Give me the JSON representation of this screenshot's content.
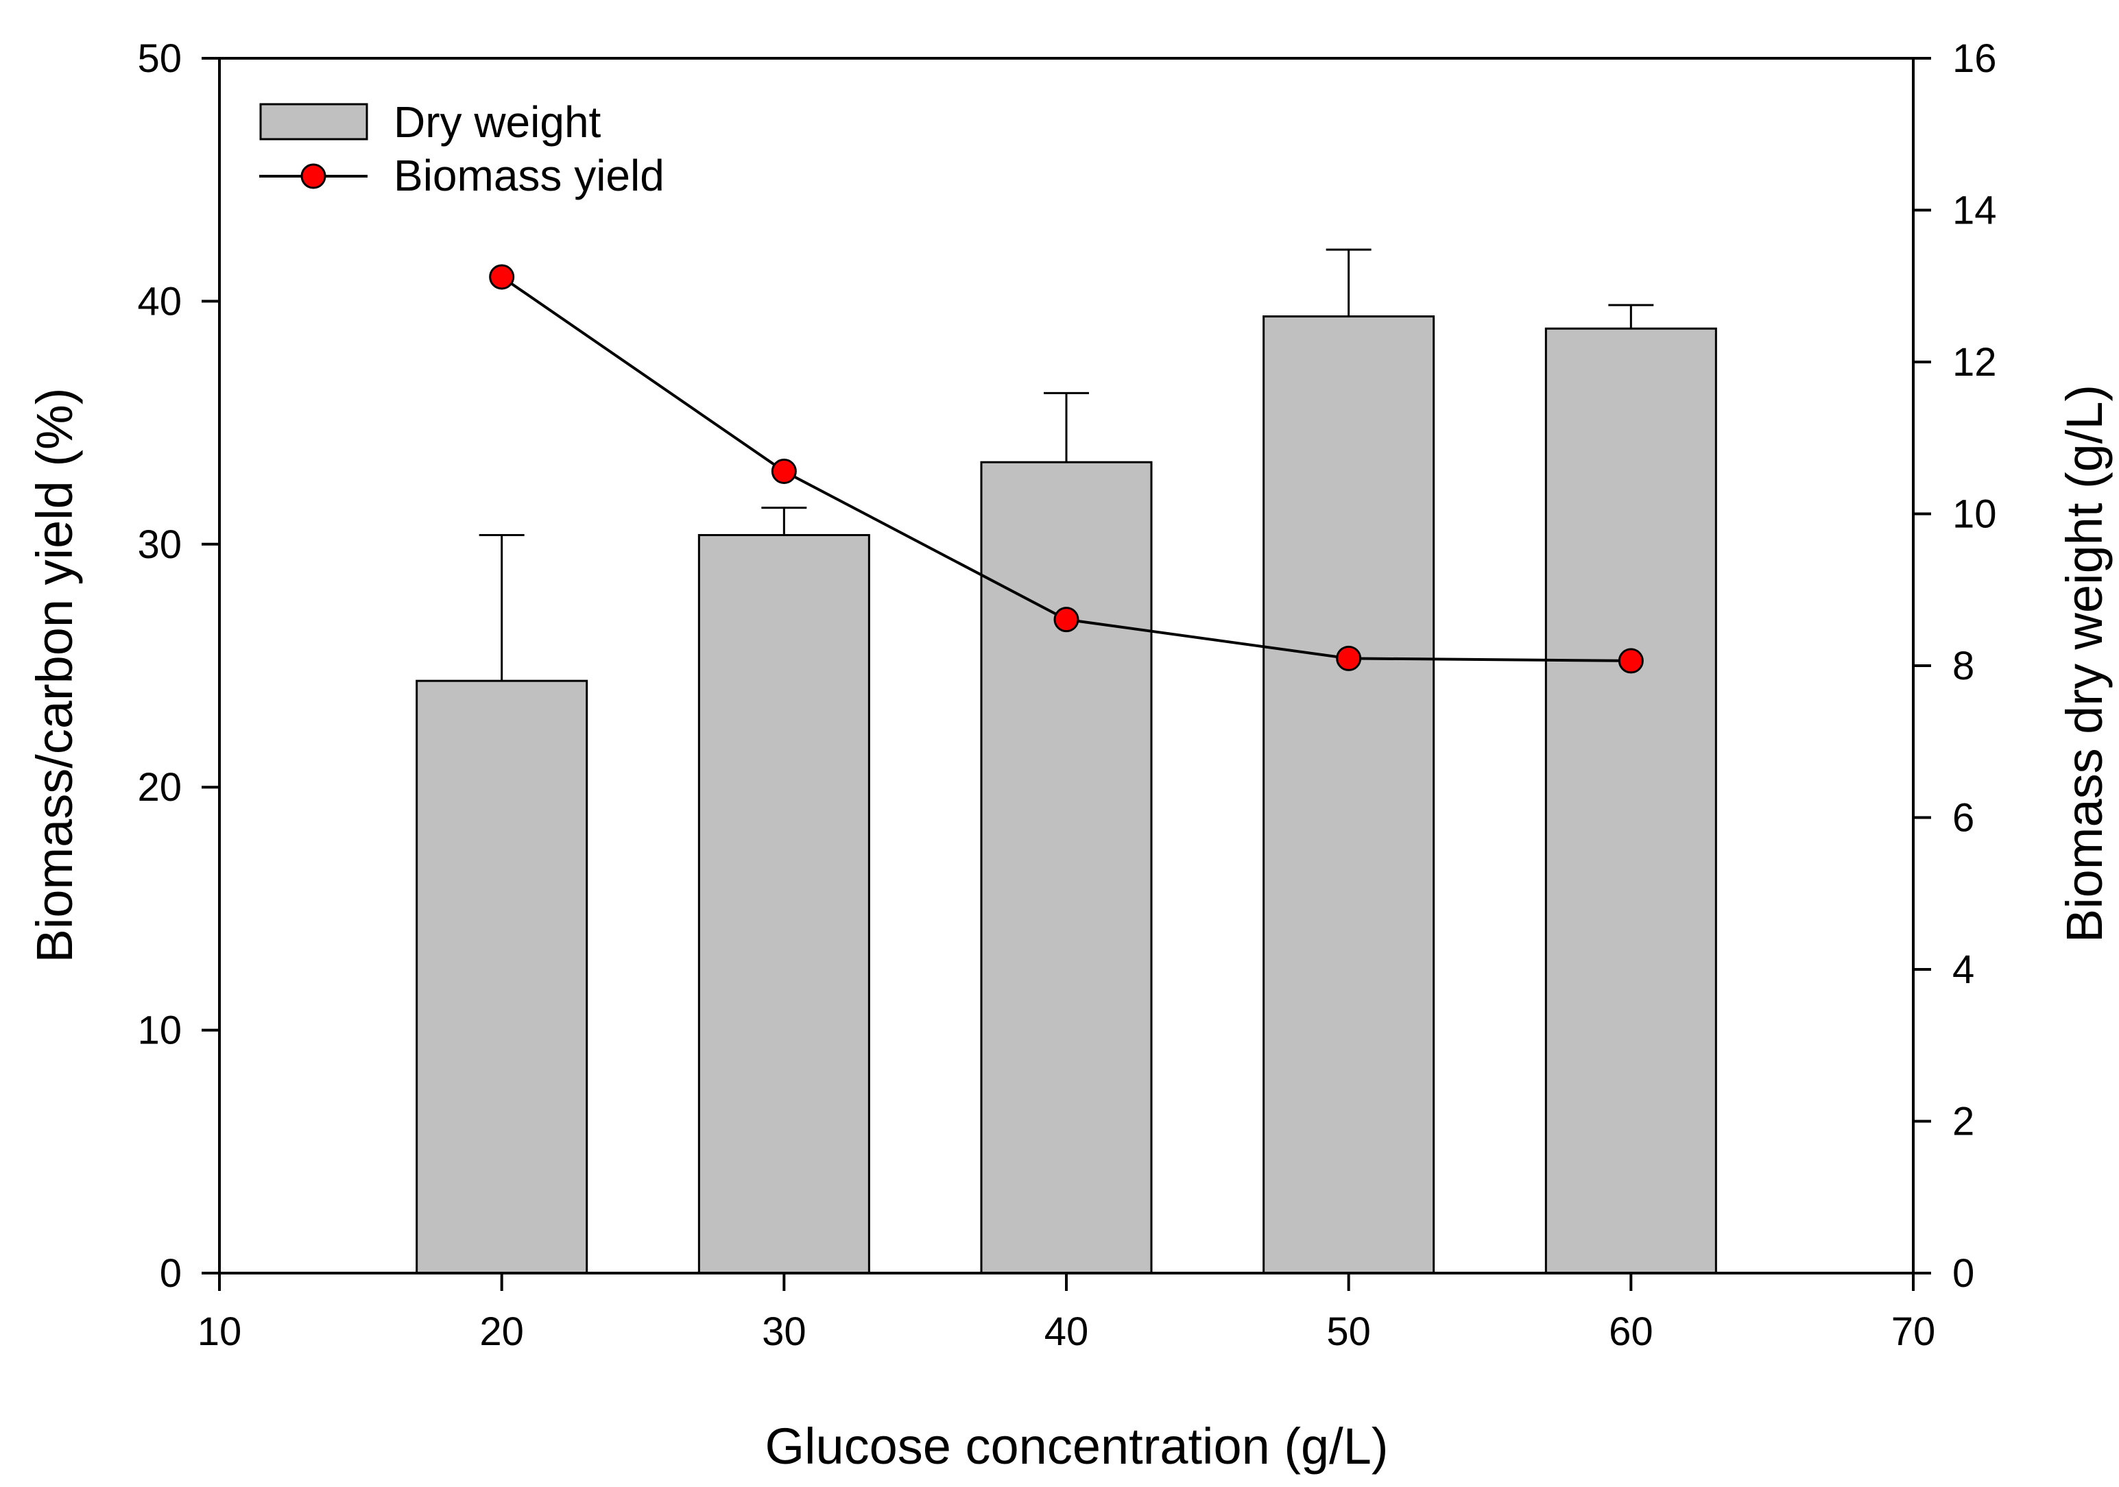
{
  "chart_data": {
    "type": "bar",
    "title": "",
    "xlabel": "Glucose concentration (g/L)",
    "ylabel_left": "Biomass/carbon yield (%)",
    "ylabel_right": "Biomass dry weight (g/L)",
    "xlim": [
      10,
      70
    ],
    "ylim_left": [
      0,
      50
    ],
    "ylim_right": [
      0,
      16
    ],
    "x_ticks": [
      10,
      20,
      30,
      40,
      50,
      60,
      70
    ],
    "y_left_ticks": [
      0,
      10,
      20,
      30,
      40,
      50
    ],
    "y_right_ticks": [
      0,
      2,
      4,
      6,
      8,
      10,
      12,
      14,
      16
    ],
    "grid": false,
    "legend_position": "top-left",
    "x": [
      20,
      30,
      40,
      50,
      60
    ],
    "series": [
      {
        "name": "Dry weight",
        "kind": "bar",
        "axis": "right",
        "values": [
          7.8,
          9.72,
          10.68,
          12.6,
          12.44
        ],
        "error_plus": [
          1.92,
          0.36,
          0.91,
          0.88,
          0.31
        ],
        "color": "#c0c0c0"
      },
      {
        "name": "Biomass yield",
        "kind": "line",
        "axis": "left",
        "values": [
          41.0,
          33.0,
          26.9,
          25.3,
          25.2
        ],
        "color": "#ff0000"
      }
    ]
  }
}
